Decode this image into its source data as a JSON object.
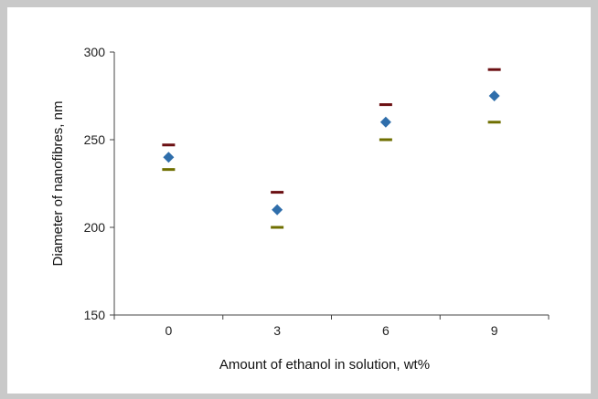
{
  "chart_data": {
    "type": "scatter",
    "xlabel": "Amount of ethanol in solution, wt%",
    "ylabel": "Diameter of nanofibres, nm",
    "categories": [
      "0",
      "3",
      "6",
      "9"
    ],
    "ylim": [
      150,
      300
    ],
    "yticks": [
      "150",
      "200",
      "250",
      "300"
    ],
    "grid": false,
    "series": [
      {
        "role": "mean",
        "marker": "diamond",
        "color": "#2f6eab",
        "values": [
          240,
          210,
          260,
          275
        ]
      },
      {
        "role": "upper",
        "marker": "dash",
        "color": "#6b0f12",
        "values": [
          247,
          220,
          270,
          290
        ]
      },
      {
        "role": "lower",
        "marker": "dash",
        "color": "#6f6f00",
        "values": [
          233,
          200,
          250,
          260
        ]
      }
    ]
  }
}
